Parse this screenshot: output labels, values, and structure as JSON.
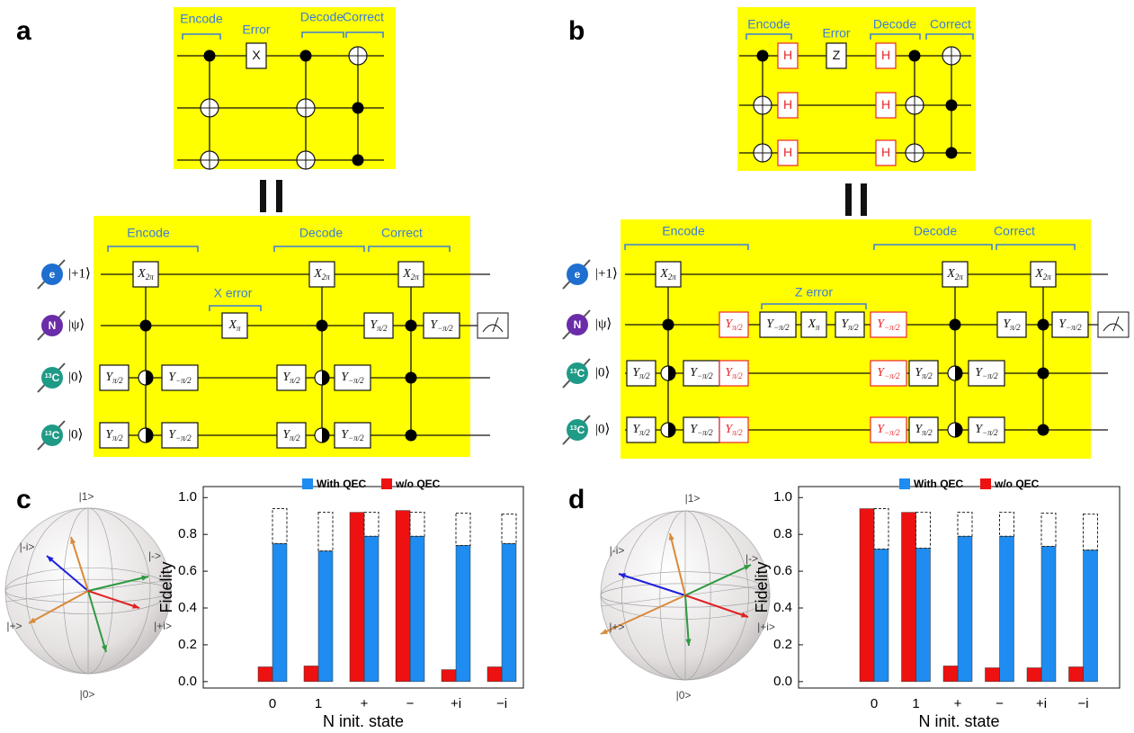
{
  "panels": [
    {
      "label": "a",
      "top_circuit": {
        "stages": [
          "Encode",
          "Error",
          "Decode",
          "Correct"
        ],
        "gates": [
          {
            "base": "X"
          }
        ]
      },
      "bottom_circuit": {
        "stages": [
          "Encode",
          "X error",
          "Decode",
          "Correct"
        ],
        "qubits": [
          {
            "icon": "e",
            "state": "|+1⟩"
          },
          {
            "icon": "N",
            "state": "|ψ⟩"
          },
          {
            "icon_sup": "13",
            "icon": "C",
            "state": "|0⟩"
          },
          {
            "icon_sup": "13",
            "icon": "C",
            "state": "|0⟩"
          }
        ],
        "gates": [
          {
            "base": "X",
            "sub": "2π"
          },
          {
            "base": "Y",
            "sub": "π/2"
          },
          {
            "base": "Y",
            "sub": "π/2"
          },
          {
            "base": "Y",
            "sub": "−π/2"
          },
          {
            "base": "Y",
            "sub": "−π/2"
          },
          {
            "base": "X",
            "sub": "π"
          },
          {
            "base": "Y",
            "sub": "π/2"
          },
          {
            "base": "Y",
            "sub": "π/2"
          },
          {
            "base": "X",
            "sub": "2π"
          },
          {
            "base": "Y",
            "sub": "−π/2"
          },
          {
            "base": "Y",
            "sub": "−π/2"
          },
          {
            "base": "Y",
            "sub": "π/2"
          },
          {
            "base": "X",
            "sub": "2π"
          },
          {
            "base": "Y",
            "sub": "−π/2"
          }
        ]
      }
    },
    {
      "label": "b",
      "top_circuit": {
        "stages": [
          "Encode",
          "Error",
          "Decode",
          "Correct"
        ],
        "gates": [
          {
            "base": "H",
            "color": "#e8262a"
          },
          {
            "base": "H",
            "color": "#e8262a"
          },
          {
            "base": "H",
            "color": "#e8262a"
          },
          {
            "base": "Z"
          },
          {
            "base": "H",
            "color": "#e8262a"
          },
          {
            "base": "H",
            "color": "#e8262a"
          },
          {
            "base": "H",
            "color": "#e8262a"
          }
        ]
      },
      "bottom_circuit": {
        "stages": [
          "Encode",
          "Z error",
          "Decode",
          "Correct"
        ],
        "qubits": [
          {
            "icon": "e",
            "state": "|+1⟩"
          },
          {
            "icon": "N",
            "state": "|ψ⟩"
          },
          {
            "icon_sup": "13",
            "icon": "C",
            "state": "|0⟩"
          },
          {
            "icon_sup": "13",
            "icon": "C",
            "state": "|0⟩"
          }
        ],
        "gates": [
          {
            "base": "X",
            "sub": "2π"
          },
          {
            "base": "Y",
            "sub": "π/2"
          },
          {
            "base": "Y",
            "sub": "π/2"
          },
          {
            "base": "Y",
            "sub": "−π/2"
          },
          {
            "base": "Y",
            "sub": "−π/2"
          },
          {
            "base": "Y",
            "sub": "π/2",
            "color": "#e8262a"
          },
          {
            "base": "Y",
            "sub": "π/2",
            "color": "#e8262a"
          },
          {
            "base": "Y",
            "sub": "π/2",
            "color": "#e8262a"
          },
          {
            "base": "Y",
            "sub": "−π/2"
          },
          {
            "base": "X",
            "sub": "π"
          },
          {
            "base": "Y",
            "sub": "π/2"
          },
          {
            "base": "Y",
            "sub": "−π/2",
            "color": "#e8262a"
          },
          {
            "base": "Y",
            "sub": "−π/2",
            "color": "#e8262a"
          },
          {
            "base": "Y",
            "sub": "−π/2",
            "color": "#e8262a"
          },
          {
            "base": "Y",
            "sub": "π/2"
          },
          {
            "base": "Y",
            "sub": "π/2"
          },
          {
            "base": "X",
            "sub": "2π"
          },
          {
            "base": "Y",
            "sub": "−π/2"
          },
          {
            "base": "Y",
            "sub": "−π/2"
          },
          {
            "base": "Y",
            "sub": "π/2"
          },
          {
            "base": "X",
            "sub": "2π"
          },
          {
            "base": "Y",
            "sub": "−π/2"
          }
        ]
      }
    },
    {
      "label": "c",
      "bloch_labels": [
        "|1>",
        "|0>",
        "|-i>",
        "|+i>",
        "|->",
        "|+>"
      ]
    },
    {
      "label": "d",
      "bloch_labels": [
        "|1>",
        "|0>",
        "|-i>",
        "|+i>",
        "|->",
        "|+>"
      ]
    }
  ],
  "chart_data": [
    {
      "type": "bar",
      "categories": [
        "0",
        "1",
        "+",
        "−",
        "+i",
        "−i"
      ],
      "series": [
        {
          "name": "With QEC",
          "color": "#1e8cf0",
          "values": [
            0.75,
            0.71,
            0.79,
            0.79,
            0.74,
            0.75
          ]
        },
        {
          "name": "w/o QEC",
          "color": "#ee1111",
          "values": [
            0.08,
            0.085,
            0.92,
            0.93,
            0.065,
            0.08
          ]
        }
      ],
      "dashed_values": [
        0.94,
        0.92,
        0.92,
        0.92,
        0.915,
        0.91
      ],
      "xlabel": "N init. state",
      "ylabel": "Fidelity",
      "ylim": [
        -0.035,
        1.06
      ],
      "yticks": [
        {
          "value": 0,
          "label": "0.0"
        },
        0.2,
        0.4,
        0.6,
        0.8,
        {
          "value": 1,
          "label": "1.0"
        }
      ]
    },
    {
      "type": "bar",
      "categories": [
        "0",
        "1",
        "+",
        "−",
        "+i",
        "−i"
      ],
      "series": [
        {
          "name": "With QEC",
          "color": "#1e8cf0",
          "values": [
            0.72,
            0.725,
            0.79,
            0.79,
            0.735,
            0.715
          ]
        },
        {
          "name": "w/o QEC",
          "color": "#ee1111",
          "values": [
            0.94,
            0.92,
            0.085,
            0.075,
            0.075,
            0.08
          ]
        }
      ],
      "dashed_values": [
        0.94,
        0.92,
        0.92,
        0.92,
        0.915,
        0.91
      ],
      "xlabel": "N init. state",
      "ylabel": "Fidelity",
      "ylim": [
        -0.035,
        1.06
      ],
      "yticks": [
        {
          "value": 0,
          "label": "0.0"
        },
        0.2,
        0.4,
        0.6,
        0.8,
        {
          "value": 1,
          "label": "1.0"
        }
      ]
    }
  ]
}
